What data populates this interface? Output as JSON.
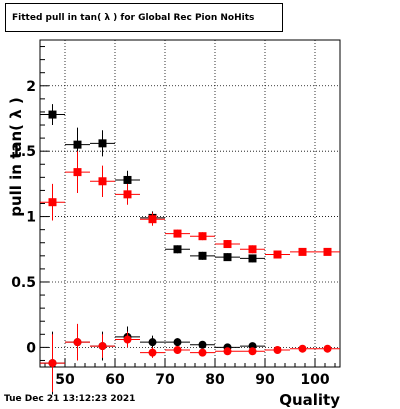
{
  "title": "Fitted pull in tan( λ ) for Global Rec Pion NoHits",
  "footer": "Tue Dec 21 13:12:23 2021",
  "chart_data": {
    "type": "scatter",
    "xlabel": "Quality",
    "ylabel": "pull in tan( λ )",
    "xlim": [
      45,
      105
    ],
    "ylim": [
      -0.15,
      2.35
    ],
    "xticks": [
      "50",
      "60",
      "70",
      "80",
      "90",
      "100"
    ],
    "yticks": [
      "0",
      "0.5",
      "1",
      "1.5",
      "2"
    ],
    "grid": true,
    "colors": {
      "black_series": "#000000",
      "red_series": "#ff0000"
    },
    "series": [
      {
        "x": [
          47.5,
          52.5,
          57.5,
          62.5,
          67.5,
          72.5,
          77.5,
          82.5,
          87.5
        ],
        "y": [
          1.78,
          1.55,
          1.56,
          1.28,
          0.99,
          0.75,
          0.7,
          0.69,
          0.68
        ],
        "yerr": [
          0.08,
          0.13,
          0.1,
          0.07,
          0.05,
          0.03,
          0.03,
          0.03,
          0.03
        ],
        "xerr": 2.5,
        "color": "#000000"
      },
      {
        "x": [
          47.5,
          52.5,
          57.5,
          62.5,
          67.5,
          72.5,
          77.5,
          82.5,
          87.5,
          92.5,
          97.5,
          102.5
        ],
        "y": [
          1.11,
          1.34,
          1.27,
          1.17,
          0.98,
          0.87,
          0.85,
          0.79,
          0.75,
          0.71,
          0.73,
          0.73
        ],
        "yerr": [
          0.14,
          0.16,
          0.12,
          0.08,
          0.05,
          0.03,
          0.03,
          0.03,
          0.03,
          0.02,
          0.02,
          0.02
        ],
        "xerr": 2.5,
        "color": "#ff0000"
      },
      {
        "x": [
          47.5,
          52.5,
          57.5,
          62.5,
          67.5,
          72.5,
          77.5,
          82.5,
          87.5
        ],
        "y": [
          -0.12,
          0.04,
          0.01,
          0.08,
          0.04,
          0.04,
          0.02,
          0.0,
          0.01
        ],
        "yerr": [
          0.24,
          0.13,
          0.11,
          0.08,
          0.05,
          0.03,
          0.02,
          0.02,
          0.02
        ],
        "xerr": 2.5,
        "color": "#000000"
      },
      {
        "x": [
          47.5,
          52.5,
          57.5,
          62.5,
          67.5,
          72.5,
          77.5,
          82.5,
          87.5,
          92.5,
          97.5,
          102.5
        ],
        "y": [
          -0.12,
          0.04,
          0.01,
          0.06,
          -0.04,
          -0.02,
          -0.04,
          -0.03,
          -0.03,
          -0.02,
          -0.01,
          -0.01
        ],
        "yerr": [
          0.22,
          0.14,
          0.09,
          0.06,
          0.04,
          0.03,
          0.02,
          0.02,
          0.02,
          0.02,
          0.02,
          0.02
        ],
        "xerr": 2.5,
        "color": "#ff0000"
      }
    ]
  }
}
